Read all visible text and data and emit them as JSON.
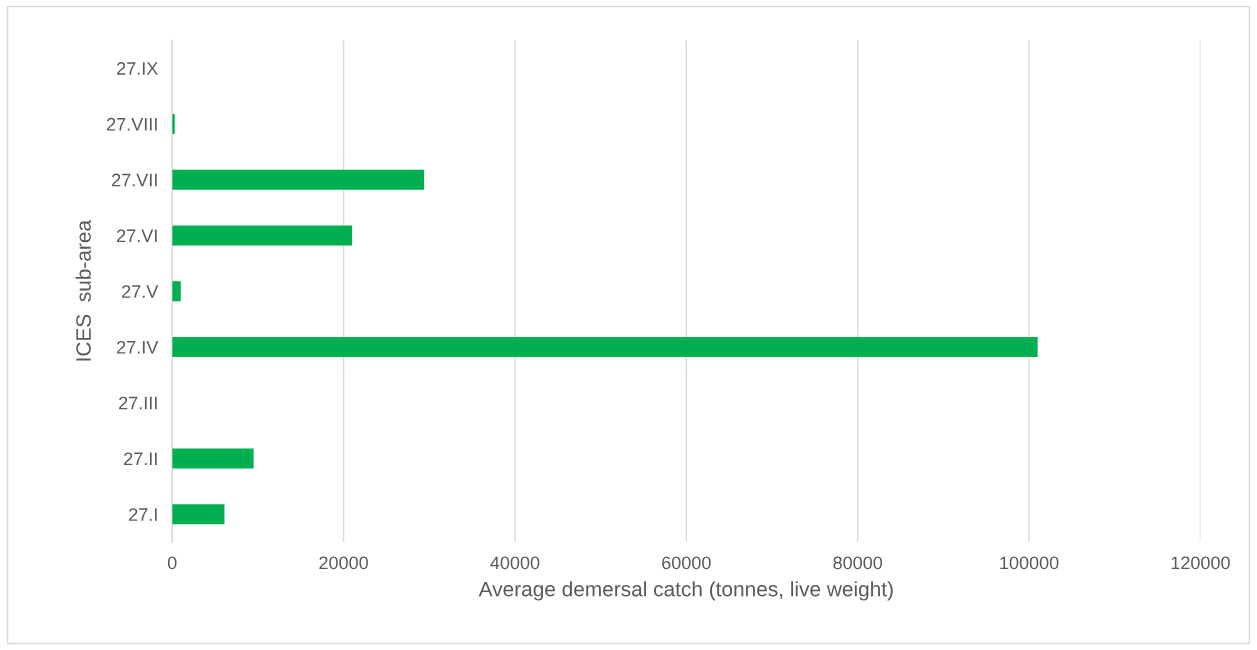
{
  "chart_data": {
    "type": "bar",
    "orientation": "horizontal",
    "categories": [
      "27.IX",
      "27.VIII",
      "27.VII",
      "27.VI",
      "27.V",
      "27.IV",
      "27.III",
      "27.II",
      "27.I"
    ],
    "values": [
      0,
      300,
      29400,
      21000,
      1000,
      101000,
      0,
      9500,
      6100
    ],
    "color": "#00b050",
    "xlabel": "Average demersal catch (tonnes, live weight)",
    "ylabel": "ICES  sub-area",
    "xlim": [
      0,
      120000
    ],
    "xticks": [
      0,
      20000,
      40000,
      60000,
      80000,
      100000,
      120000
    ],
    "grid": "x"
  }
}
